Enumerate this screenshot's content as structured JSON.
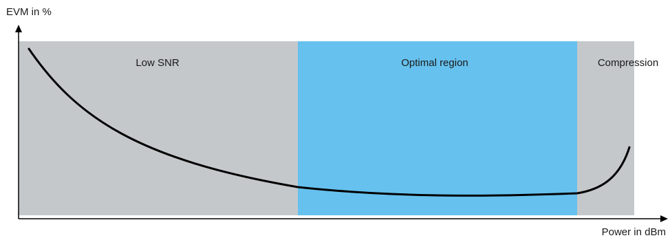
{
  "axes": {
    "y_label": "EVM in %",
    "x_label": "Power in dBm"
  },
  "regions": [
    {
      "label": "Low SNR",
      "color": "#c4c8cb"
    },
    {
      "label": "Optimal region",
      "color": "#66c1ee"
    },
    {
      "label": "Compression",
      "color": "#c4c8cb"
    }
  ],
  "curve": {
    "color": "#000000"
  },
  "axis_color": "#000000"
}
